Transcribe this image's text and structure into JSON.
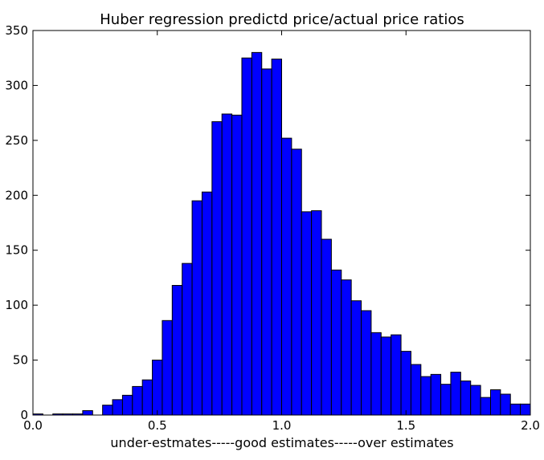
{
  "chart_data": {
    "type": "bar",
    "title": "Huber regression predictd price/actual price ratios",
    "xlabel": "under-estmates-----good estimates-----over estimates",
    "ylabel": "",
    "xlim": [
      0.0,
      2.0
    ],
    "ylim": [
      0,
      350
    ],
    "grid": false,
    "legend": "none",
    "bar_color": "#0000ff",
    "edge_color": "#000000",
    "bin_width": 0.04,
    "bin_starts": [
      0.0,
      0.04,
      0.08,
      0.12,
      0.16,
      0.2,
      0.24,
      0.28,
      0.32,
      0.36,
      0.4,
      0.44,
      0.48,
      0.52,
      0.56,
      0.6,
      0.64,
      0.68,
      0.72,
      0.76,
      0.8,
      0.84,
      0.88,
      0.92,
      0.96,
      1.0,
      1.04,
      1.08,
      1.12,
      1.16,
      1.2,
      1.24,
      1.28,
      1.32,
      1.36,
      1.4,
      1.44,
      1.48,
      1.52,
      1.56,
      1.6,
      1.64,
      1.68,
      1.72,
      1.76,
      1.8,
      1.84,
      1.88,
      1.92,
      1.96
    ],
    "values": [
      1,
      0,
      1,
      1,
      1,
      4,
      0,
      9,
      14,
      18,
      26,
      32,
      50,
      86,
      118,
      138,
      195,
      203,
      267,
      274,
      273,
      325,
      330,
      315,
      324,
      252,
      242,
      185,
      186,
      160,
      132,
      123,
      104,
      95,
      75,
      71,
      73,
      58,
      46,
      35,
      37,
      28,
      39,
      31,
      27,
      16,
      23,
      19,
      10,
      10
    ],
    "x_ticks": [
      "0.0",
      "0.5",
      "1.0",
      "1.5",
      "2.0"
    ],
    "x_tick_values": [
      0.0,
      0.5,
      1.0,
      1.5,
      2.0
    ],
    "y_ticks": [
      "0",
      "50",
      "100",
      "150",
      "200",
      "250",
      "300",
      "350"
    ],
    "y_tick_values": [
      0,
      50,
      100,
      150,
      200,
      250,
      300,
      350
    ]
  }
}
